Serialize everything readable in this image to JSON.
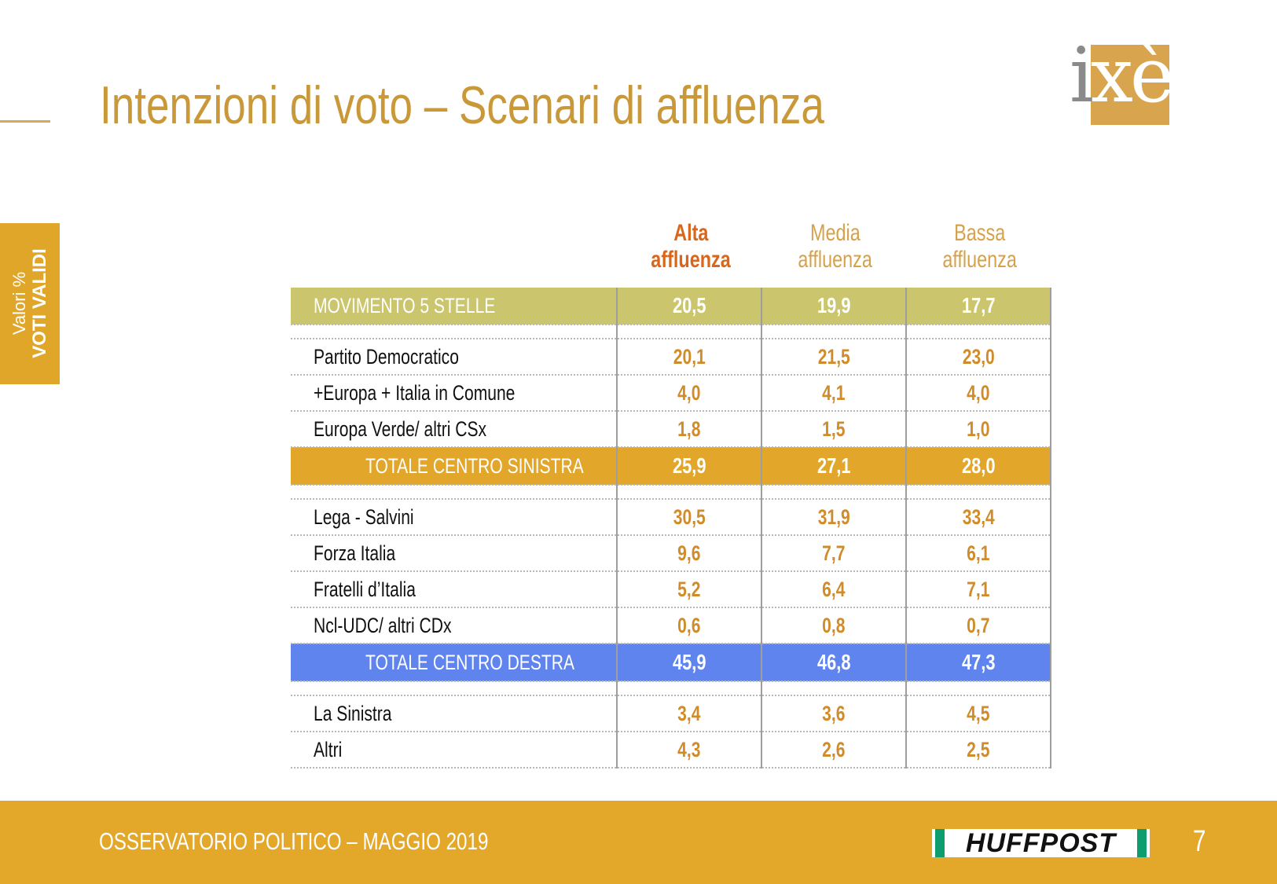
{
  "header": {
    "title": "Intenzioni di voto – Scenari di affluenza"
  },
  "logo": {
    "i": "i",
    "x": "x",
    "e": "è"
  },
  "side_tab": {
    "line1": "Valori %",
    "line2": "VOTI VALIDI"
  },
  "columns": [
    {
      "line1": "Alta",
      "line2": "affluenza"
    },
    {
      "line1": "Media",
      "line2": "affluenza"
    },
    {
      "line1": "Bassa",
      "line2": "affluenza"
    }
  ],
  "rows": [
    {
      "label": "MOVIMENTO 5 STELLE",
      "values": [
        "20,5",
        "19,9",
        "17,7"
      ],
      "style": "band-m5s"
    },
    {
      "label": "Partito Democratico",
      "values": [
        "20,1",
        "21,5",
        "23,0"
      ]
    },
    {
      "label": "+Europa + Italia in Comune",
      "values": [
        "4,0",
        "4,1",
        "4,0"
      ]
    },
    {
      "label": "Europa Verde/ altri CSx",
      "values": [
        "1,8",
        "1,5",
        "1,0"
      ]
    },
    {
      "label": "TOTALE CENTRO SINISTRA",
      "values": [
        "25,9",
        "27,1",
        "28,0"
      ],
      "style": "band-cs"
    },
    {
      "label": "Lega - Salvini",
      "values": [
        "30,5",
        "31,9",
        "33,4"
      ]
    },
    {
      "label": "Forza Italia",
      "values": [
        "9,6",
        "7,7",
        "6,1"
      ]
    },
    {
      "label": "Fratelli d’Italia",
      "values": [
        "5,2",
        "6,4",
        "7,1"
      ]
    },
    {
      "label": "Ncl-UDC/ altri CDx",
      "values": [
        "0,6",
        "0,8",
        "0,7"
      ]
    },
    {
      "label": "TOTALE CENTRO DESTRA",
      "values": [
        "45,9",
        "46,8",
        "47,3"
      ],
      "style": "band-cd"
    },
    {
      "label": "La Sinistra",
      "values": [
        "3,4",
        "3,6",
        "4,5"
      ]
    },
    {
      "label": "Altri",
      "values": [
        "4,3",
        "2,6",
        "2,5"
      ]
    }
  ],
  "colors": {
    "title": "#c99838",
    "band_m5s": "#cbc66d",
    "band_centro_sinistra": "#e1a62a",
    "band_centro_destra": "#5f84ee",
    "value_text": "#d08c2a",
    "active_column": "#d9661a",
    "footer": "#e3a82a"
  },
  "footer": {
    "text": "OSSERVATORIO POLITICO – MAGGIO 2019",
    "brand": "HUFFPOST",
    "page_number": "7"
  }
}
